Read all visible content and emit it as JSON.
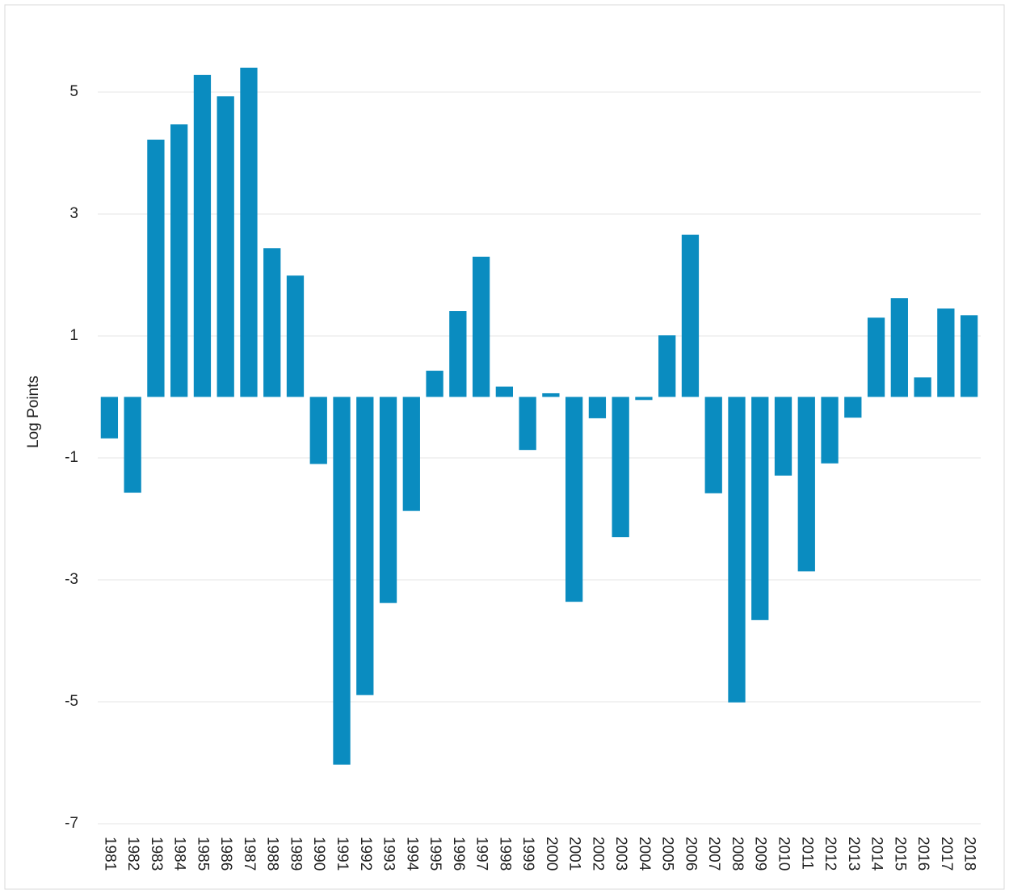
{
  "chart_data": {
    "type": "bar",
    "y_label": "Log Points",
    "categories": [
      "1981",
      "1982",
      "1983",
      "1984",
      "1985",
      "1986",
      "1987",
      "1988",
      "1989",
      "1990",
      "1991",
      "1992",
      "1993",
      "1994",
      "1995",
      "1996",
      "1997",
      "1998",
      "1999",
      "2000",
      "2001",
      "2002",
      "2003",
      "2004",
      "2005",
      "2006",
      "2007",
      "2008",
      "2009",
      "2010",
      "2011",
      "2012",
      "2013",
      "2014",
      "2015",
      "2016",
      "2017",
      "2018"
    ],
    "values": [
      -0.68,
      -1.57,
      4.22,
      4.47,
      5.28,
      4.93,
      5.4,
      2.44,
      1.99,
      -1.1,
      -6.03,
      -4.89,
      -3.38,
      -1.87,
      0.43,
      1.41,
      2.3,
      0.17,
      -0.87,
      0.06,
      -3.36,
      -0.35,
      -2.3,
      -0.05,
      1.01,
      2.66,
      -1.58,
      -5.01,
      -3.66,
      -1.29,
      -2.86,
      -1.09,
      -0.34,
      1.3,
      1.62,
      0.32,
      1.45,
      1.34
    ],
    "color": "#0a8cc0",
    "ylim": [
      -7,
      6.4
    ],
    "yticks": [
      -7,
      -5,
      -3,
      -1,
      1,
      3,
      5
    ],
    "grid": true
  }
}
